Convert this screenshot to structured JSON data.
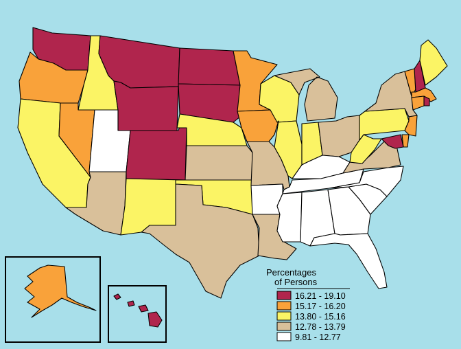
{
  "map": {
    "background": "#a8dfea",
    "legend": {
      "title_line1": "Percentages",
      "title_line2": "of Persons",
      "classes": [
        {
          "label": "16.21 - 19.10",
          "color": "#b0254d"
        },
        {
          "label": "15.17 - 16.20",
          "color": "#f9a23a"
        },
        {
          "label": "13.80 - 15.16",
          "color": "#fbf465"
        },
        {
          "label": "12.78 - 13.79",
          "color": "#d9c09a"
        },
        {
          "label": "9.81 - 12.77",
          "color": "#ffffff"
        }
      ]
    },
    "states": {
      "WA": 0,
      "OR": 1,
      "CA": 2,
      "ID": 2,
      "NV": 1,
      "MT": 0,
      "WY": 0,
      "UT": 4,
      "AZ": 3,
      "CO": 0,
      "NM": 2,
      "ND": 0,
      "SD": 0,
      "NE": 2,
      "KS": 3,
      "OK": 2,
      "TX": 3,
      "MN": 1,
      "IA": 1,
      "MO": 3,
      "AR": 4,
      "LA": 3,
      "WI": 2,
      "IL": 2,
      "MI": 3,
      "IN": 2,
      "OH": 3,
      "KY": 4,
      "TN": 4,
      "MS": 4,
      "AL": 4,
      "GA": 4,
      "FL": 4,
      "SC": 4,
      "NC": 4,
      "VA": 3,
      "WV": 2,
      "PA": 2,
      "NY": 3,
      "VT": 1,
      "NH": 0,
      "ME": 2,
      "MA": 1,
      "RI": 0,
      "CT": 1,
      "NJ": 1,
      "DE": 1,
      "MD": 0,
      "AK": 1,
      "HI": 0
    }
  }
}
